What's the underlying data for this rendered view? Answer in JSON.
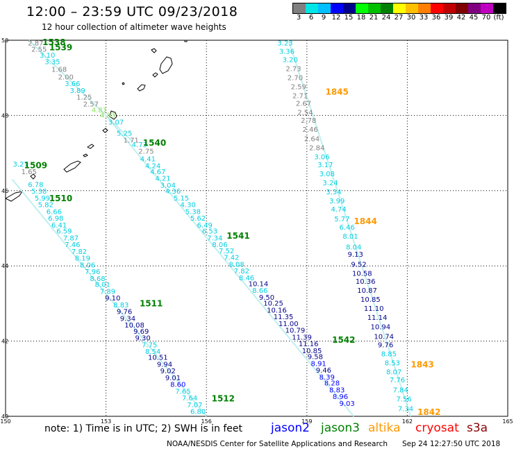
{
  "header": {
    "title": "12:00 – 23:59 UTC 09/23/2018",
    "subtitle": "12 hour collection of altimeter wave heights"
  },
  "legend": {
    "colors": [
      "#808080",
      "#00e5e5",
      "#00bfff",
      "#0000ff",
      "#00008b",
      "#00ff00",
      "#00c000",
      "#008000",
      "#ffff00",
      "#ffc000",
      "#ff8000",
      "#ff0000",
      "#c00000",
      "#800000",
      "#800080",
      "#c000c0",
      "#000000"
    ],
    "labels": [
      {
        "text": "3",
        "after": 1
      },
      {
        "text": "6",
        "after": 2
      },
      {
        "text": "9",
        "after": 3
      },
      {
        "text": "12",
        "after": 4
      },
      {
        "text": "15",
        "after": 5
      },
      {
        "text": "18",
        "after": 6
      },
      {
        "text": "21",
        "after": 7
      },
      {
        "text": "24",
        "after": 8
      },
      {
        "text": "27",
        "after": 9
      },
      {
        "text": "30",
        "after": 10
      },
      {
        "text": "33",
        "after": 11
      },
      {
        "text": "36",
        "after": 12
      },
      {
        "text": "39",
        "after": 13
      },
      {
        "text": "42",
        "after": 14
      },
      {
        "text": "45",
        "after": 15
      },
      {
        "text": "70",
        "after": 16
      },
      {
        "text": "(ft)",
        "after": 17
      }
    ]
  },
  "map": {
    "lon_range": [
      150,
      165
    ],
    "lat_range": [
      40,
      50
    ],
    "lon_ticks": [
      "150",
      "153",
      "156",
      "159",
      "162",
      "165"
    ],
    "lat_ticks": [
      "50",
      "48",
      "46",
      "44",
      "42",
      "40"
    ],
    "grid_lons": [
      153,
      156,
      159,
      162
    ],
    "grid_lats": [
      48,
      46,
      44,
      42
    ],
    "track_colors": {
      "gray": "#808080",
      "cyan": "#00dddd",
      "navy": "#00008b",
      "green": "#008000",
      "orange": "#ff9900"
    },
    "value_colors": {
      "gray": "#808080",
      "cyan": "#00cfe0",
      "blue": "#0000ff",
      "navy": "#00008b",
      "green": "#00a000",
      "lime": "#90e060"
    },
    "time_labels": [
      {
        "text": "1538",
        "lon": 151.45,
        "lat": 49.87,
        "color": "green"
      },
      {
        "text": "1539",
        "lon": 151.65,
        "lat": 49.73,
        "color": "green"
      },
      {
        "text": "1845",
        "lon": 159.9,
        "lat": 48.55,
        "color": "orange"
      },
      {
        "text": "1540",
        "lon": 154.45,
        "lat": 47.2,
        "color": "green"
      },
      {
        "text": "1509",
        "lon": 150.9,
        "lat": 46.6,
        "color": "green"
      },
      {
        "text": "1510",
        "lon": 151.65,
        "lat": 45.72,
        "color": "green"
      },
      {
        "text": "1844",
        "lon": 160.75,
        "lat": 45.11,
        "color": "orange"
      },
      {
        "text": "1541",
        "lon": 156.95,
        "lat": 44.72,
        "color": "green"
      },
      {
        "text": "1511",
        "lon": 154.35,
        "lat": 42.92,
        "color": "green"
      },
      {
        "text": "1542",
        "lon": 160.1,
        "lat": 41.96,
        "color": "green"
      },
      {
        "text": "1843",
        "lon": 162.45,
        "lat": 41.3,
        "color": "orange"
      },
      {
        "text": "1512",
        "lon": 156.5,
        "lat": 40.4,
        "color": "green"
      },
      {
        "text": "1842",
        "lon": 162.65,
        "lat": 40.04,
        "color": "orange"
      }
    ],
    "values": [
      {
        "v": "2.87",
        "lon": 150.9,
        "lat": 49.86,
        "c": "gray"
      },
      {
        "v": "2.55",
        "lon": 151.0,
        "lat": 49.7,
        "c": "gray"
      },
      {
        "v": "3.10",
        "lon": 151.25,
        "lat": 49.54,
        "c": "cyan"
      },
      {
        "v": "3.35",
        "lon": 151.4,
        "lat": 49.36,
        "c": "cyan"
      },
      {
        "v": "1.68",
        "lon": 151.6,
        "lat": 49.16,
        "c": "gray"
      },
      {
        "v": "2.00",
        "lon": 151.8,
        "lat": 48.96,
        "c": "gray"
      },
      {
        "v": "3.66",
        "lon": 152.0,
        "lat": 48.78,
        "c": "cyan"
      },
      {
        "v": "3.89",
        "lon": 152.15,
        "lat": 48.6,
        "c": "cyan"
      },
      {
        "v": "1.25",
        "lon": 152.35,
        "lat": 48.42,
        "c": "gray"
      },
      {
        "v": "2.57",
        "lon": 152.55,
        "lat": 48.24,
        "c": "gray"
      },
      {
        "v": "4.81",
        "lon": 152.8,
        "lat": 48.08,
        "c": "lime"
      },
      {
        "v": "4.83",
        "lon": 153.05,
        "lat": 47.94,
        "c": "lime"
      },
      {
        "v": "3.07",
        "lon": 153.3,
        "lat": 47.76,
        "c": "cyan"
      },
      {
        "v": "5.25",
        "lon": 153.55,
        "lat": 47.46,
        "c": "cyan"
      },
      {
        "v": "1.71",
        "lon": 153.75,
        "lat": 47.28,
        "c": "gray"
      },
      {
        "v": "4.73",
        "lon": 154.0,
        "lat": 47.16,
        "c": "cyan"
      },
      {
        "v": "2.75",
        "lon": 154.2,
        "lat": 46.98,
        "c": "gray"
      },
      {
        "v": "4.41",
        "lon": 154.25,
        "lat": 46.78,
        "c": "cyan"
      },
      {
        "v": "4.24",
        "lon": 154.4,
        "lat": 46.6,
        "c": "cyan"
      },
      {
        "v": "4.67",
        "lon": 154.55,
        "lat": 46.44,
        "c": "cyan"
      },
      {
        "v": "4.21",
        "lon": 154.7,
        "lat": 46.26,
        "c": "cyan"
      },
      {
        "v": "3.04",
        "lon": 154.85,
        "lat": 46.08,
        "c": "cyan"
      },
      {
        "v": "4.36",
        "lon": 155.0,
        "lat": 45.92,
        "c": "cyan"
      },
      {
        "v": "5.15",
        "lon": 155.25,
        "lat": 45.74,
        "c": "cyan"
      },
      {
        "v": "4.30",
        "lon": 155.45,
        "lat": 45.56,
        "c": "cyan"
      },
      {
        "v": "5.38",
        "lon": 155.6,
        "lat": 45.38,
        "c": "cyan"
      },
      {
        "v": "5.62",
        "lon": 155.75,
        "lat": 45.2,
        "c": "cyan"
      },
      {
        "v": "6.49",
        "lon": 155.95,
        "lat": 45.02,
        "c": "cyan"
      },
      {
        "v": "6.53",
        "lon": 156.1,
        "lat": 44.86,
        "c": "cyan"
      },
      {
        "v": "7.34",
        "lon": 156.25,
        "lat": 44.68,
        "c": "cyan"
      },
      {
        "v": "8.06",
        "lon": 156.4,
        "lat": 44.5,
        "c": "cyan"
      },
      {
        "v": "7.52",
        "lon": 156.6,
        "lat": 44.34,
        "c": "cyan"
      },
      {
        "v": "7.42",
        "lon": 156.75,
        "lat": 44.16,
        "c": "cyan"
      },
      {
        "v": "8.08",
        "lon": 156.9,
        "lat": 43.98,
        "c": "cyan"
      },
      {
        "v": "7.82",
        "lon": 157.05,
        "lat": 43.8,
        "c": "cyan"
      },
      {
        "v": "8.46",
        "lon": 157.2,
        "lat": 43.62,
        "c": "cyan"
      },
      {
        "v": "10.14",
        "lon": 157.55,
        "lat": 43.46,
        "c": "navy"
      },
      {
        "v": "8.66",
        "lon": 157.6,
        "lat": 43.28,
        "c": "cyan"
      },
      {
        "v": "9.50",
        "lon": 157.8,
        "lat": 43.1,
        "c": "navy"
      },
      {
        "v": "10.25",
        "lon": 158.0,
        "lat": 42.94,
        "c": "navy"
      },
      {
        "v": "10.16",
        "lon": 158.1,
        "lat": 42.76,
        "c": "navy"
      },
      {
        "v": "11.35",
        "lon": 158.3,
        "lat": 42.58,
        "c": "navy"
      },
      {
        "v": "11.00",
        "lon": 158.45,
        "lat": 42.4,
        "c": "navy"
      },
      {
        "v": "10.79",
        "lon": 158.65,
        "lat": 42.22,
        "c": "navy"
      },
      {
        "v": "11.39",
        "lon": 158.85,
        "lat": 42.04,
        "c": "navy"
      },
      {
        "v": "11.16",
        "lon": 159.05,
        "lat": 41.86,
        "c": "navy"
      },
      {
        "v": "10.85",
        "lon": 159.15,
        "lat": 41.68,
        "c": "navy"
      },
      {
        "v": "9.58",
        "lon": 159.25,
        "lat": 41.52,
        "c": "navy"
      },
      {
        "v": "8.91",
        "lon": 159.35,
        "lat": 41.34,
        "c": "blue"
      },
      {
        "v": "9.46",
        "lon": 159.5,
        "lat": 41.16,
        "c": "navy"
      },
      {
        "v": "8.39",
        "lon": 159.6,
        "lat": 40.98,
        "c": "blue"
      },
      {
        "v": "8.28",
        "lon": 159.75,
        "lat": 40.82,
        "c": "blue"
      },
      {
        "v": "8.83",
        "lon": 159.9,
        "lat": 40.64,
        "c": "blue"
      },
      {
        "v": "8.96",
        "lon": 160.0,
        "lat": 40.46,
        "c": "blue"
      },
      {
        "v": "9.03",
        "lon": 160.2,
        "lat": 40.28,
        "c": "blue"
      },
      {
        "v": "3.27",
        "lon": 150.45,
        "lat": 46.64,
        "c": "cyan"
      },
      {
        "v": "1.65",
        "lon": 150.7,
        "lat": 46.44,
        "c": "gray"
      },
      {
        "v": "6.78",
        "lon": 150.9,
        "lat": 46.1,
        "c": "cyan"
      },
      {
        "v": "5.38",
        "lon": 151.0,
        "lat": 45.92,
        "c": "cyan"
      },
      {
        "v": "5.99",
        "lon": 151.1,
        "lat": 45.74,
        "c": "cyan"
      },
      {
        "v": "5.82",
        "lon": 151.2,
        "lat": 45.56,
        "c": "cyan"
      },
      {
        "v": "6.66",
        "lon": 151.45,
        "lat": 45.38,
        "c": "cyan"
      },
      {
        "v": "6.98",
        "lon": 151.5,
        "lat": 45.2,
        "c": "cyan"
      },
      {
        "v": "6.41",
        "lon": 151.6,
        "lat": 45.02,
        "c": "cyan"
      },
      {
        "v": "6.59",
        "lon": 151.75,
        "lat": 44.86,
        "c": "cyan"
      },
      {
        "v": "7.87",
        "lon": 151.95,
        "lat": 44.68,
        "c": "cyan"
      },
      {
        "v": "7.46",
        "lon": 152.0,
        "lat": 44.5,
        "c": "cyan"
      },
      {
        "v": "7.82",
        "lon": 152.2,
        "lat": 44.32,
        "c": "cyan"
      },
      {
        "v": "8.19",
        "lon": 152.3,
        "lat": 44.14,
        "c": "cyan"
      },
      {
        "v": "8.06",
        "lon": 152.45,
        "lat": 43.96,
        "c": "cyan"
      },
      {
        "v": "7.96",
        "lon": 152.6,
        "lat": 43.78,
        "c": "cyan"
      },
      {
        "v": "8.68",
        "lon": 152.75,
        "lat": 43.6,
        "c": "cyan"
      },
      {
        "v": "8.01",
        "lon": 152.9,
        "lat": 43.44,
        "c": "cyan"
      },
      {
        "v": "7.89",
        "lon": 153.05,
        "lat": 43.26,
        "c": "cyan"
      },
      {
        "v": "9.10",
        "lon": 153.2,
        "lat": 43.08,
        "c": "navy"
      },
      {
        "v": "8.83",
        "lon": 153.45,
        "lat": 42.9,
        "c": "cyan"
      },
      {
        "v": "9.76",
        "lon": 153.55,
        "lat": 42.72,
        "c": "navy"
      },
      {
        "v": "9.34",
        "lon": 153.65,
        "lat": 42.54,
        "c": "navy"
      },
      {
        "v": "10.08",
        "lon": 153.85,
        "lat": 42.36,
        "c": "navy"
      },
      {
        "v": "9.69",
        "lon": 154.05,
        "lat": 42.2,
        "c": "navy"
      },
      {
        "v": "9.30",
        "lon": 154.1,
        "lat": 42.02,
        "c": "navy"
      },
      {
        "v": "7.75",
        "lon": 154.3,
        "lat": 41.84,
        "c": "cyan"
      },
      {
        "v": "8.54",
        "lon": 154.4,
        "lat": 41.66,
        "c": "cyan"
      },
      {
        "v": "10.51",
        "lon": 154.55,
        "lat": 41.5,
        "c": "navy"
      },
      {
        "v": "9.94",
        "lon": 154.75,
        "lat": 41.32,
        "c": "navy"
      },
      {
        "v": "9.02",
        "lon": 154.85,
        "lat": 41.14,
        "c": "navy"
      },
      {
        "v": "9.01",
        "lon": 155.0,
        "lat": 40.96,
        "c": "navy"
      },
      {
        "v": "8.60",
        "lon": 155.15,
        "lat": 40.78,
        "c": "blue"
      },
      {
        "v": "7.65",
        "lon": 155.3,
        "lat": 40.6,
        "c": "cyan"
      },
      {
        "v": "7.64",
        "lon": 155.5,
        "lat": 40.42,
        "c": "cyan"
      },
      {
        "v": "7.07",
        "lon": 155.65,
        "lat": 40.24,
        "c": "cyan"
      },
      {
        "v": "6.80",
        "lon": 155.75,
        "lat": 40.06,
        "c": "cyan"
      },
      {
        "v": "3.23",
        "lon": 158.35,
        "lat": 49.86,
        "c": "cyan"
      },
      {
        "v": "3.36",
        "lon": 158.4,
        "lat": 49.64,
        "c": "cyan"
      },
      {
        "v": "3.20",
        "lon": 158.5,
        "lat": 49.42,
        "c": "cyan"
      },
      {
        "v": "2.73",
        "lon": 158.6,
        "lat": 49.18,
        "c": "gray"
      },
      {
        "v": "2.70",
        "lon": 158.65,
        "lat": 48.94,
        "c": "gray"
      },
      {
        "v": "2.59",
        "lon": 158.75,
        "lat": 48.7,
        "c": "gray"
      },
      {
        "v": "2.71",
        "lon": 158.8,
        "lat": 48.46,
        "c": "gray"
      },
      {
        "v": "2.67",
        "lon": 158.9,
        "lat": 48.26,
        "c": "gray"
      },
      {
        "v": "2.54",
        "lon": 158.95,
        "lat": 48.02,
        "c": "gray"
      },
      {
        "v": "2.78",
        "lon": 159.05,
        "lat": 47.8,
        "c": "gray"
      },
      {
        "v": "2.46",
        "lon": 159.1,
        "lat": 47.56,
        "c": "gray"
      },
      {
        "v": "2.64",
        "lon": 159.15,
        "lat": 47.32,
        "c": "gray"
      },
      {
        "v": "2.84",
        "lon": 159.3,
        "lat": 47.08,
        "c": "gray"
      },
      {
        "v": "3.06",
        "lon": 159.45,
        "lat": 46.84,
        "c": "cyan"
      },
      {
        "v": "3.17",
        "lon": 159.55,
        "lat": 46.62,
        "c": "cyan"
      },
      {
        "v": "3.08",
        "lon": 159.6,
        "lat": 46.38,
        "c": "cyan"
      },
      {
        "v": "3.24",
        "lon": 159.7,
        "lat": 46.14,
        "c": "cyan"
      },
      {
        "v": "3.34",
        "lon": 159.8,
        "lat": 45.9,
        "c": "cyan"
      },
      {
        "v": "3.99",
        "lon": 159.9,
        "lat": 45.66,
        "c": "cyan"
      },
      {
        "v": "4.74",
        "lon": 159.95,
        "lat": 45.44,
        "c": "cyan"
      },
      {
        "v": "5.77",
        "lon": 160.05,
        "lat": 45.18,
        "c": "cyan"
      },
      {
        "v": "6.46",
        "lon": 160.2,
        "lat": 44.96,
        "c": "cyan"
      },
      {
        "v": "8.01",
        "lon": 160.3,
        "lat": 44.72,
        "c": "cyan"
      },
      {
        "v": "8.04",
        "lon": 160.4,
        "lat": 44.44,
        "c": "cyan"
      },
      {
        "v": "9.13",
        "lon": 160.45,
        "lat": 44.24,
        "c": "navy"
      },
      {
        "v": "9.52",
        "lon": 160.55,
        "lat": 43.98,
        "c": "navy"
      },
      {
        "v": "10.58",
        "lon": 160.65,
        "lat": 43.74,
        "c": "navy"
      },
      {
        "v": "10.36",
        "lon": 160.75,
        "lat": 43.52,
        "c": "navy"
      },
      {
        "v": "10.87",
        "lon": 160.8,
        "lat": 43.28,
        "c": "navy"
      },
      {
        "v": "10.85",
        "lon": 160.9,
        "lat": 43.04,
        "c": "navy"
      },
      {
        "v": "11.10",
        "lon": 161.0,
        "lat": 42.8,
        "c": "navy"
      },
      {
        "v": "11.14",
        "lon": 161.1,
        "lat": 42.56,
        "c": "navy"
      },
      {
        "v": "10.94",
        "lon": 161.2,
        "lat": 42.32,
        "c": "navy"
      },
      {
        "v": "10.74",
        "lon": 161.3,
        "lat": 42.06,
        "c": "navy"
      },
      {
        "v": "9.76",
        "lon": 161.35,
        "lat": 41.84,
        "c": "navy"
      },
      {
        "v": "8.85",
        "lon": 161.45,
        "lat": 41.6,
        "c": "cyan"
      },
      {
        "v": "8.53",
        "lon": 161.55,
        "lat": 41.36,
        "c": "cyan"
      },
      {
        "v": "8.07",
        "lon": 161.6,
        "lat": 41.12,
        "c": "cyan"
      },
      {
        "v": "7.76",
        "lon": 161.7,
        "lat": 40.9,
        "c": "cyan"
      },
      {
        "v": "7.84",
        "lon": 161.8,
        "lat": 40.64,
        "c": "cyan"
      },
      {
        "v": "7.56",
        "lon": 161.9,
        "lat": 40.4,
        "c": "cyan"
      },
      {
        "v": "7.34",
        "lon": 161.95,
        "lat": 40.14,
        "c": "cyan"
      }
    ]
  },
  "footer": {
    "note": "note: 1) Time is in UTC; 2) SWH is in feet",
    "satellites": [
      {
        "name": "jason2",
        "color": "#0000ff"
      },
      {
        "name": "jason3",
        "color": "#008000"
      },
      {
        "name": "altika",
        "color": "#ff9900"
      },
      {
        "name": "cryosat",
        "color": "#ff0000"
      },
      {
        "name": "s3a",
        "color": "#8b0000"
      }
    ],
    "credit": "NOAA/NESDIS Center for Satellite Applications and Research",
    "timestamp": "Sep 24 12:27:50 UTC 2018"
  }
}
